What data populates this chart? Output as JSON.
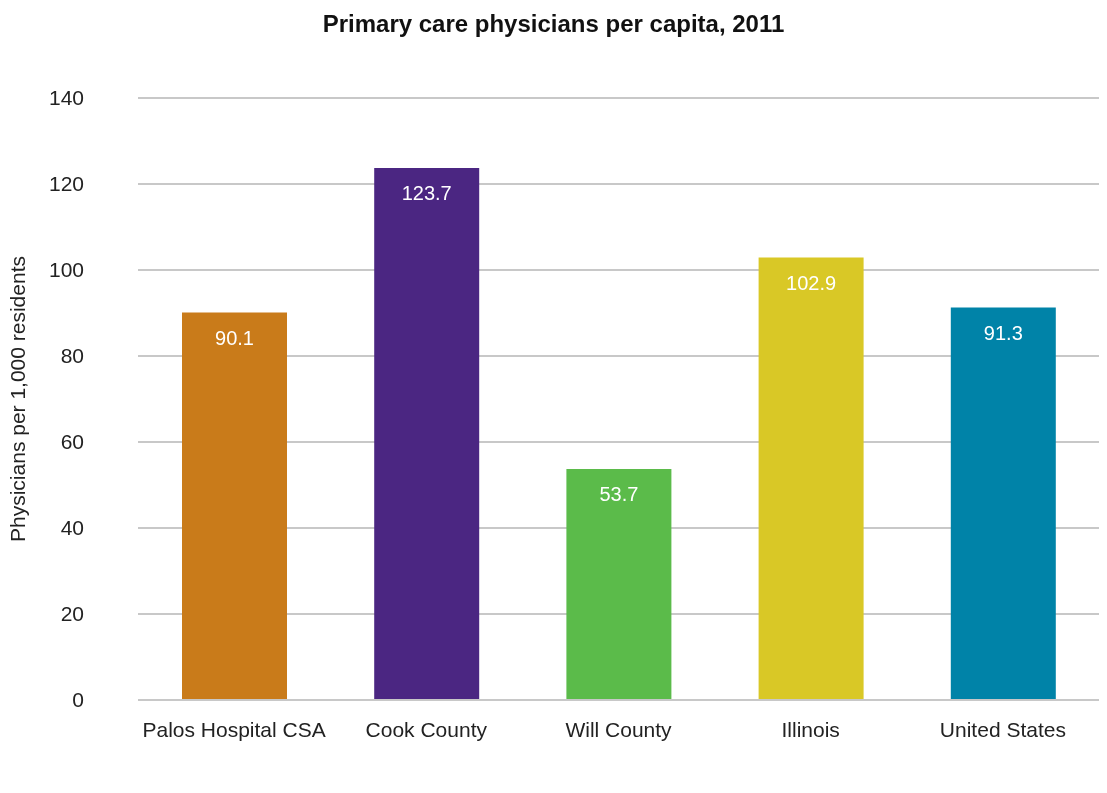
{
  "chart_data": {
    "type": "bar",
    "title": "Primary care physicians per capita, 2011",
    "categories": [
      "Palos Hospital CSA",
      "Cook County",
      "Will County",
      "Illinois",
      "United States"
    ],
    "values": [
      90.1,
      123.7,
      53.7,
      102.9,
      91.3
    ],
    "colors": [
      "#c97b1a",
      "#4b2682",
      "#5bbb4a",
      "#d9c826",
      "#0083a8"
    ],
    "ylabel": "Physicians per 1,000 residents",
    "ylim": [
      0,
      140
    ],
    "yticks": [
      0,
      20,
      40,
      60,
      80,
      100,
      120,
      140
    ],
    "grid": "y",
    "data_labels": true
  }
}
